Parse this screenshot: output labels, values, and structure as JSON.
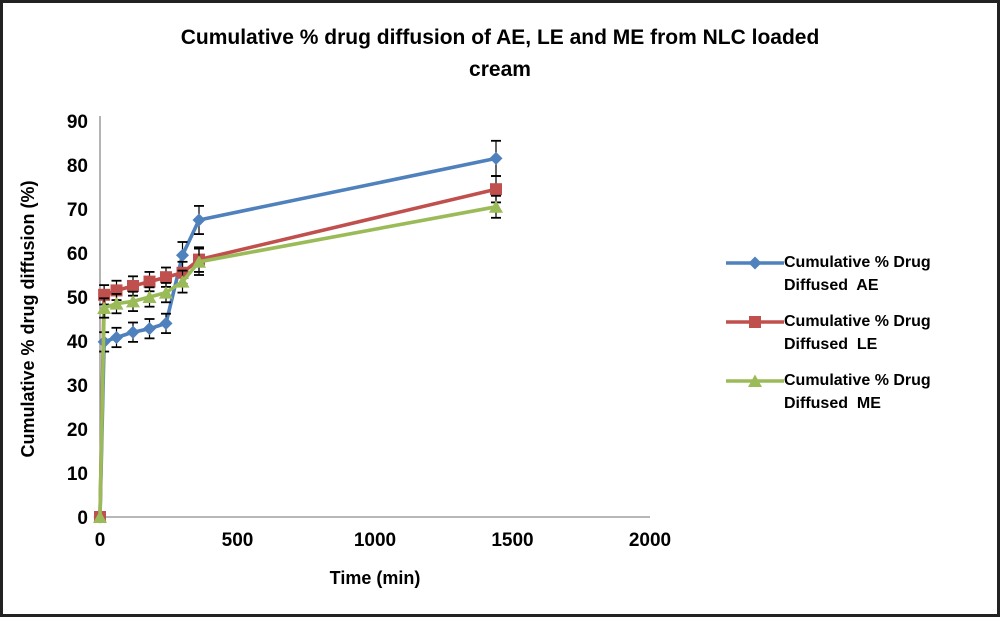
{
  "figure": {
    "title_line1": "Cumulative % drug diffusion of AE, LE and ME from NLC loaded",
    "title_line2": "cream",
    "border_color": "#222222",
    "axis_line_color": "#8c8c8c",
    "error_bar_color": "#000000"
  },
  "chart_data": {
    "type": "line",
    "title": "Cumulative % drug diffusion of AE, LE and ME from NLC loaded cream",
    "xlabel": "Time (min)",
    "ylabel": "Cumulative % drug diffusion (%)",
    "xlim": [
      0,
      2000
    ],
    "ylim": [
      0,
      90
    ],
    "x_ticks": [
      0,
      500,
      1000,
      1500,
      2000
    ],
    "y_ticks": [
      0,
      10,
      20,
      30,
      40,
      50,
      60,
      70,
      80,
      90
    ],
    "grid": false,
    "legend_position": "right",
    "x": [
      0,
      15,
      60,
      120,
      180,
      240,
      300,
      360,
      1440
    ],
    "series": [
      {
        "name": "Cumulative % Drug Diffused  AE",
        "legend_lines": [
          "Cumulative % Drug",
          "Diffused  AE"
        ],
        "marker": "diamond",
        "color": "#4F81BD",
        "values": [
          0,
          39.8,
          40.8,
          42.0,
          42.8,
          44.0,
          59.5,
          67.5,
          81.5
        ],
        "errors": [
          0,
          2.2,
          2.2,
          2.2,
          2.2,
          2.2,
          3.0,
          3.2,
          4.0
        ]
      },
      {
        "name": "Cumulative % Drug Diffused  LE",
        "legend_lines": [
          "Cumulative % Drug",
          "Diffused  LE"
        ],
        "marker": "square",
        "color": "#C0504D",
        "values": [
          0,
          50.5,
          51.5,
          52.5,
          53.5,
          54.5,
          55.5,
          58.5,
          74.5
        ],
        "errors": [
          0,
          2.2,
          2.2,
          2.2,
          2.2,
          2.2,
          2.5,
          2.8,
          3.0
        ]
      },
      {
        "name": "Cumulative % Drug Diffused  ME",
        "legend_lines": [
          "Cumulative % Drug",
          "Diffused  ME"
        ],
        "marker": "triangle",
        "color": "#9BBB59",
        "values": [
          0,
          47.5,
          48.5,
          49.0,
          50.0,
          51.0,
          53.5,
          58.0,
          70.5
        ],
        "errors": [
          0,
          2.2,
          2.2,
          2.2,
          2.2,
          2.2,
          2.5,
          3.0,
          2.5
        ]
      }
    ]
  }
}
